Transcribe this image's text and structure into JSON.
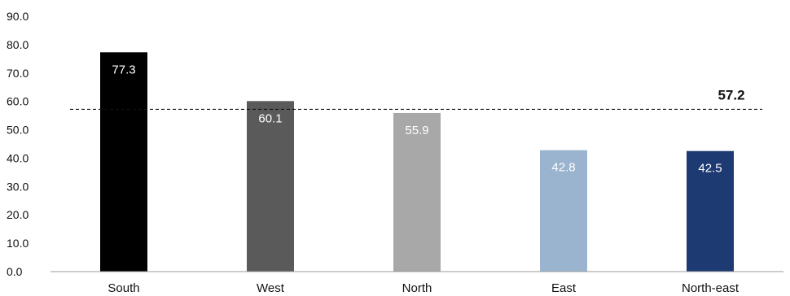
{
  "chart_data": {
    "type": "bar",
    "categories": [
      "South",
      "West",
      "North",
      "East",
      "North-east"
    ],
    "values": [
      77.3,
      60.1,
      55.9,
      42.8,
      42.5
    ],
    "value_labels": [
      "77.3",
      "60.1",
      "55.9",
      "42.8",
      "42.5"
    ],
    "colors": [
      "#000000",
      "#5a5a5a",
      "#a8a8a8",
      "#9ab4cf",
      "#1e3a72"
    ],
    "ylim": [
      0,
      90
    ],
    "yticks": [
      "0.0",
      "10.0",
      "20.0",
      "30.0",
      "40.0",
      "50.0",
      "60.0",
      "70.0",
      "80.0",
      "90.0"
    ],
    "reference_line": {
      "value": 57.2,
      "label": "57.2",
      "style": "dashed"
    },
    "grid": false,
    "title": "",
    "xlabel": "",
    "ylabel": ""
  }
}
